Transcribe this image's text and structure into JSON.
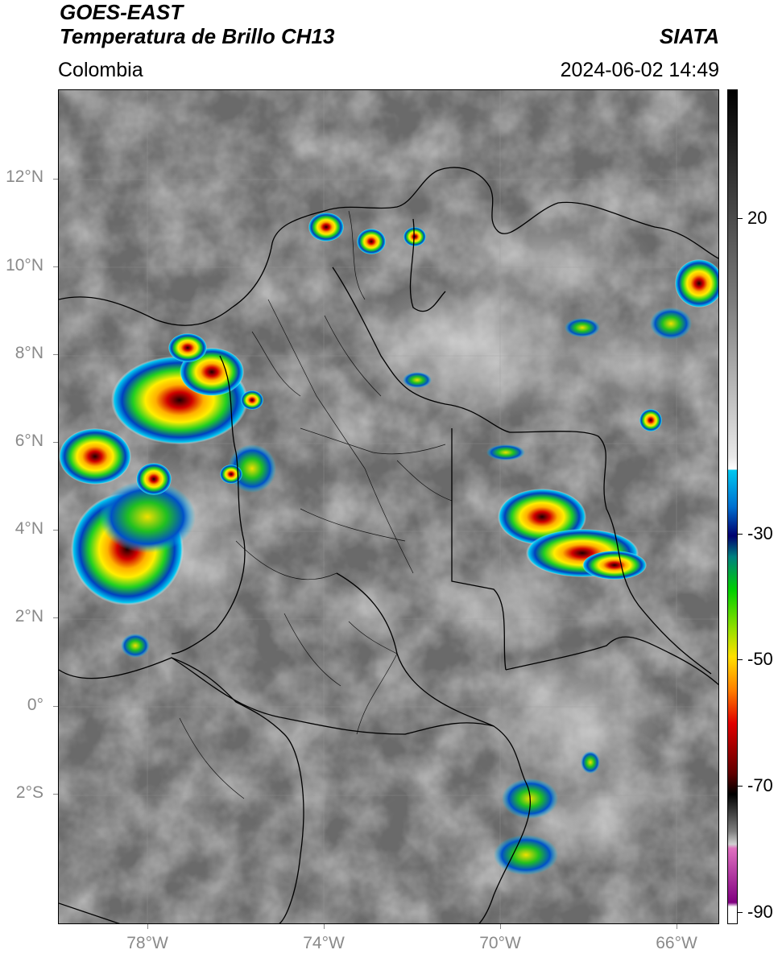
{
  "header": {
    "satellite": "GOES-EAST",
    "product": "Temperatura de Brillo CH13",
    "agency": "SIATA",
    "region": "Colombia",
    "datetime": "2024-06-02 14:49"
  },
  "map": {
    "lat_labels": [
      "12°N",
      "10°N",
      "8°N",
      "6°N",
      "4°N",
      "2°N",
      "0°",
      "2°S"
    ],
    "lon_labels": [
      "78°W",
      "74°W",
      "70°W",
      "66°W"
    ],
    "lat_range": [
      -5,
      14
    ],
    "lon_range": [
      -80,
      -65
    ]
  },
  "colorbar": {
    "tick_labels": [
      "20",
      "-30",
      "-50",
      "-70",
      "-90"
    ],
    "tick_values": [
      20,
      -30,
      -50,
      -70,
      -90
    ],
    "range": [
      -92,
      30
    ],
    "colors": {
      "warm_gray_top": "#000000",
      "light_gray": "#e8e8e8",
      "cyan": "#00c8f0",
      "dark_blue": "#00006e",
      "green": "#00d000",
      "yellow": "#ffe000",
      "red": "#e00000",
      "black": "#000000",
      "pink": "#e070c0",
      "purple": "#800080"
    }
  }
}
